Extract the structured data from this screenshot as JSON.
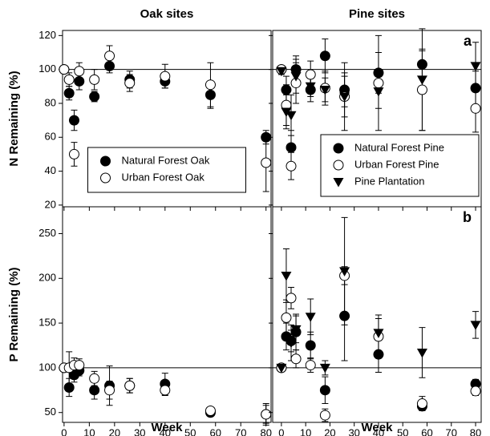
{
  "chart_data": [
    {
      "type": "scatter",
      "title": "Oak sites",
      "ylabel": "N Remaining (%)",
      "xlim": [
        -0.6,
        82
      ],
      "ylim": [
        19,
        123
      ],
      "xticks": [
        0,
        10,
        20,
        30,
        40,
        50,
        60,
        70,
        80
      ],
      "yticks": [
        20,
        40,
        60,
        80,
        100,
        120
      ],
      "hline": 100,
      "legend": "lower center",
      "x": [
        0,
        2,
        4,
        6,
        12,
        18,
        26,
        40,
        58,
        80
      ],
      "series": [
        {
          "name": "Natural Forest Oak",
          "color": "#000000",
          "marker": "circle",
          "values": [
            100,
            86,
            70,
            93,
            84,
            102,
            94,
            93,
            85,
            60
          ],
          "errors": [
            0,
            4,
            6,
            5,
            3,
            4,
            5,
            4,
            8,
            4
          ]
        },
        {
          "name": "Urban Forest Oak",
          "color": "#000000",
          "marker": "circle-open",
          "values": [
            100,
            94,
            50,
            99,
            94,
            108,
            92,
            96,
            91,
            45
          ],
          "errors": [
            0,
            4,
            7,
            5,
            6,
            6,
            5,
            7,
            13,
            17
          ]
        }
      ]
    },
    {
      "type": "scatter",
      "title": "Pine sites",
      "annotation": "a",
      "xlim": [
        -3.6,
        82.3
      ],
      "ylim": [
        19,
        123
      ],
      "xticks": [
        0,
        10,
        20,
        30,
        40,
        50,
        60,
        70,
        80
      ],
      "yticks": [
        20,
        40,
        60,
        80,
        100,
        120
      ],
      "hline": 100,
      "legend": "lower right",
      "x": [
        0,
        2,
        4,
        6,
        12,
        18,
        26,
        40,
        58,
        80
      ],
      "series": [
        {
          "name": "Natural Forest Pine",
          "color": "#000000",
          "marker": "circle",
          "values": [
            100,
            88,
            54,
            100,
            88,
            108,
            88,
            98,
            103,
            89
          ],
          "errors": [
            2,
            8,
            10,
            8,
            7,
            10,
            10,
            12,
            8,
            10
          ]
        },
        {
          "name": "Urban Forest Pine",
          "color": "#000000",
          "marker": "circle-open",
          "values": [
            100,
            79,
            43,
            92,
            97,
            89,
            84,
            92,
            88,
            77
          ],
          "errors": [
            2,
            12,
            8,
            12,
            8,
            10,
            12,
            28,
            24,
            14
          ]
        },
        {
          "name": "Pine Plantation",
          "color": "#000000",
          "marker": "triangle-down",
          "values": [
            99,
            75,
            73,
            96,
            90,
            88,
            84,
            87,
            94,
            102
          ],
          "errors": [
            2,
            10,
            12,
            10,
            6,
            7,
            20,
            10,
            30,
            14
          ]
        }
      ]
    },
    {
      "type": "scatter",
      "ylabel": "P Remaining (%)",
      "xlabel": "Week",
      "xlim": [
        -0.6,
        82
      ],
      "ylim": [
        39,
        280
      ],
      "xticks": [
        0,
        10,
        20,
        30,
        40,
        50,
        60,
        70,
        80
      ],
      "yticks": [
        50,
        100,
        150,
        200,
        250
      ],
      "hline": 100,
      "x": [
        0,
        2,
        4,
        6,
        12,
        18,
        26,
        40,
        58,
        80
      ],
      "series": [
        {
          "name": "Natural Forest Oak",
          "color": "#000000",
          "marker": "circle",
          "values": [
            100,
            78,
            92,
            97,
            75,
            80,
            80,
            82,
            50,
            48
          ],
          "errors": [
            0,
            10,
            8,
            6,
            10,
            22,
            8,
            12,
            4,
            10
          ]
        },
        {
          "name": "Urban Forest Oak",
          "color": "#000000",
          "marker": "circle-open",
          "values": [
            100,
            100,
            103,
            103,
            88,
            75,
            80,
            75,
            52,
            48
          ],
          "errors": [
            0,
            18,
            8,
            7,
            8,
            10,
            8,
            6,
            4,
            12
          ]
        }
      ]
    },
    {
      "type": "scatter",
      "annotation": "b",
      "xlabel": "Week",
      "xlim": [
        -3.6,
        82.3
      ],
      "ylim": [
        39,
        280
      ],
      "xticks": [
        0,
        10,
        20,
        30,
        40,
        50,
        60,
        70,
        80
      ],
      "yticks": [
        50,
        100,
        150,
        200,
        250
      ],
      "hline": 100,
      "x": [
        0,
        2,
        4,
        6,
        12,
        18,
        26,
        40,
        58,
        80
      ],
      "series": [
        {
          "name": "Natural Forest Pine",
          "color": "#000000",
          "marker": "circle",
          "values": [
            100,
            135,
            130,
            140,
            125,
            75,
            158,
            115,
            57,
            82
          ],
          "errors": [
            3,
            15,
            12,
            20,
            15,
            15,
            50,
            20,
            5,
            5
          ]
        },
        {
          "name": "Urban Forest Pine",
          "color": "#000000",
          "marker": "circle-open",
          "values": [
            100,
            156,
            178,
            110,
            103,
            47,
            203,
            135,
            60,
            74
          ],
          "errors": [
            3,
            20,
            12,
            10,
            8,
            7,
            10,
            20,
            8,
            5
          ]
        },
        {
          "name": "Pine Plantation",
          "color": "#000000",
          "marker": "triangle-down",
          "values": [
            100,
            203,
            128,
            143,
            157,
            100,
            208,
            139,
            117,
            148
          ],
          "errors": [
            3,
            30,
            20,
            15,
            20,
            8,
            60,
            20,
            28,
            15
          ]
        }
      ]
    }
  ]
}
